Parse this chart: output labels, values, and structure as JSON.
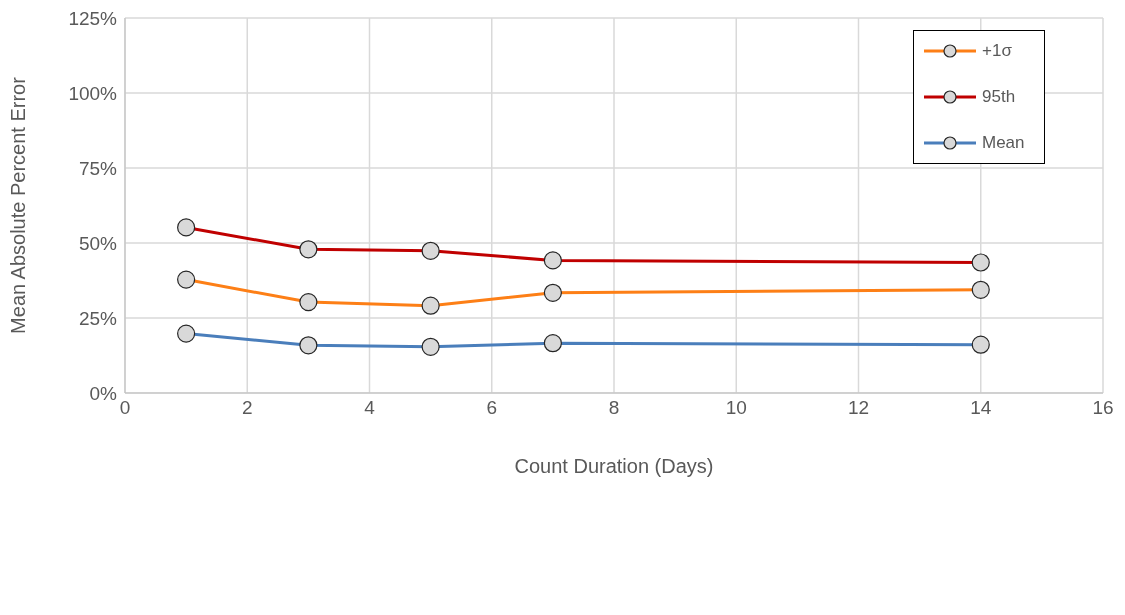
{
  "chart_data": {
    "type": "line",
    "xlabel": "Count Duration (Days)",
    "ylabel": "Mean Absolute Percent Error",
    "x": [
      1,
      3,
      5,
      7,
      14
    ],
    "series": [
      {
        "name": "Mean",
        "color": "#4a7ebb",
        "values": [
          19.8,
          15.9,
          15.4,
          16.6,
          16.1
        ]
      },
      {
        "name": "95th",
        "color": "#c00000",
        "values": [
          55.2,
          47.9,
          47.4,
          44.2,
          43.5
        ]
      },
      {
        "name": "+1σ",
        "color": "#fd7f16",
        "values": [
          37.8,
          30.3,
          29.1,
          33.4,
          34.4
        ]
      }
    ],
    "xlim": [
      0,
      16
    ],
    "xticks": [
      0,
      2,
      4,
      6,
      8,
      10,
      12,
      14,
      16
    ],
    "ylim": [
      0,
      125
    ],
    "yticks": [
      {
        "value": 0,
        "label": "0%"
      },
      {
        "value": 25,
        "label": "25%"
      },
      {
        "value": 50,
        "label": "50%"
      },
      {
        "value": 75,
        "label": "75%"
      },
      {
        "value": 100,
        "label": "100%"
      },
      {
        "value": 125,
        "label": "125%"
      }
    ],
    "grid": true,
    "legend": "top right",
    "marker": "circle",
    "line_style": "solid"
  }
}
